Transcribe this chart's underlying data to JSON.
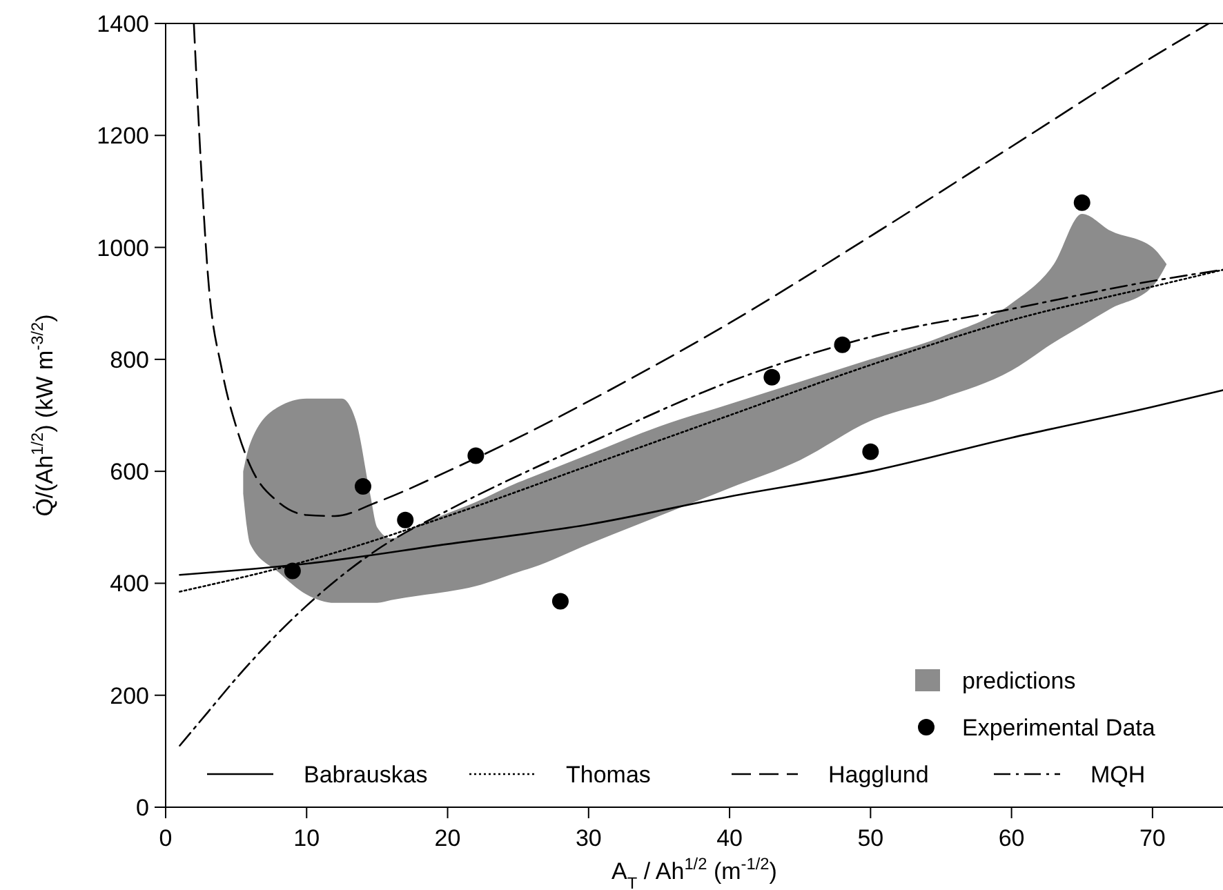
{
  "chart_data": {
    "type": "line",
    "xlabel": "A$_{T}$ / Ah$^{1/2}$ (m$^{-1/2}$)",
    "ylabel": "Q̇/(Ah$^{1/2}$) (kW m$^{-3/2}$)",
    "xlim": [
      0,
      75
    ],
    "xticks": [
      0,
      10,
      20,
      30,
      40,
      50,
      60,
      70
    ],
    "ylim": [
      0,
      1400
    ],
    "yticks": [
      0,
      200,
      400,
      600,
      800,
      1000,
      1200,
      1400
    ],
    "grid": false,
    "legend": "bottom",
    "series": [
      {
        "name": "predictions",
        "type": "area",
        "color": "#8c8c8c",
        "x": [
          5.5,
          6,
          8,
          10,
          12,
          12.5,
          13.5,
          14.5,
          15,
          16,
          18,
          20,
          22,
          25,
          26,
          30,
          35,
          40,
          45,
          50,
          55,
          60,
          63,
          65,
          67,
          70,
          71
        ],
        "values": [
          null,
          null,
          null,
          null,
          null,
          null,
          null,
          null,
          null,
          null,
          null,
          null,
          null,
          null,
          null,
          null,
          null,
          null,
          null,
          null,
          null,
          null,
          null,
          null,
          null,
          null,
          null
        ],
        "upper": [
          600,
          650,
          715,
          730,
          730,
          730,
          690,
          560,
          500,
          480,
          505,
          525,
          545,
          580,
          590,
          630,
          680,
          720,
          760,
          800,
          840,
          900,
          970,
          1060,
          1030,
          1000,
          970
        ],
        "lower": [
          560,
          470,
          420,
          380,
          365,
          365,
          365,
          365,
          365,
          370,
          378,
          385,
          395,
          420,
          428,
          470,
          520,
          570,
          620,
          690,
          730,
          780,
          830,
          860,
          890,
          930,
          970
        ]
      },
      {
        "name": "Experimental Data",
        "type": "scatter",
        "color": "#000000",
        "marker": "circle",
        "x": [
          9,
          14,
          17,
          22,
          28,
          43,
          48,
          50,
          65
        ],
        "values": [
          422,
          573,
          513,
          628,
          368,
          768,
          826,
          635,
          1080
        ]
      },
      {
        "name": "Babrauskas",
        "color": "#000000",
        "line_style": "solid",
        "x": [
          1,
          10,
          20,
          30,
          40,
          50,
          60,
          70,
          75
        ],
        "values": [
          415,
          435,
          470,
          505,
          555,
          600,
          660,
          715,
          745
        ]
      },
      {
        "name": "Thomas",
        "color": "#000000",
        "line_style": "dotted",
        "x": [
          1,
          10,
          20,
          30,
          40,
          50,
          60,
          70,
          75
        ],
        "values": [
          385,
          440,
          520,
          610,
          700,
          790,
          870,
          930,
          960
        ]
      },
      {
        "name": "Hagglund",
        "color": "#000000",
        "line_style": "dashed",
        "x": [
          2,
          2.5,
          3,
          4,
          5,
          6,
          8,
          10,
          12,
          15,
          20,
          25,
          30,
          40,
          50,
          60,
          70,
          74
        ],
        "values": [
          1400,
          1150,
          950,
          780,
          680,
          610,
          545,
          522,
          520,
          545,
          600,
          660,
          725,
          865,
          1020,
          1180,
          1340,
          1400
        ]
      },
      {
        "name": "MQH",
        "color": "#000000",
        "line_style": "dashdot",
        "x": [
          1,
          3,
          5,
          10,
          15,
          20,
          30,
          40,
          50,
          60,
          70,
          75
        ],
        "values": [
          110,
          170,
          230,
          360,
          460,
          530,
          650,
          760,
          840,
          890,
          940,
          960
        ]
      }
    ]
  }
}
